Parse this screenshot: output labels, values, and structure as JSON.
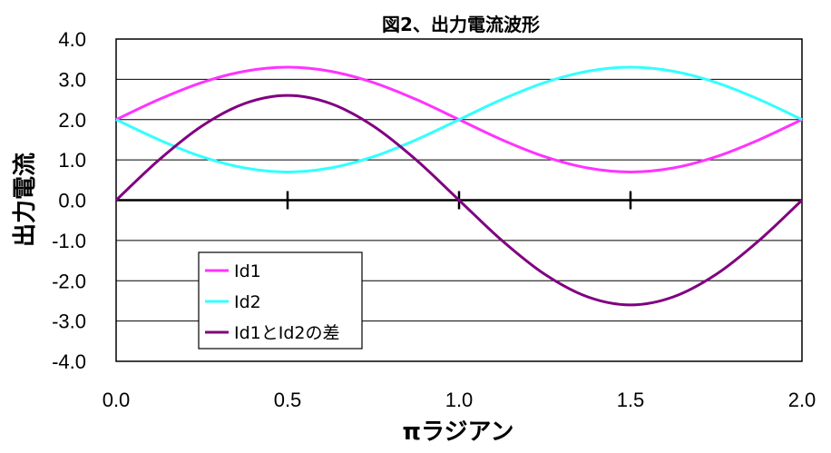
{
  "chart_data": {
    "type": "line",
    "title": "図2、出力電流波形",
    "xlabel": "πラジアン",
    "ylabel": "出力電流",
    "xlim": [
      0,
      2
    ],
    "ylim": [
      -4,
      4
    ],
    "x_ticks": [
      "0.0",
      "0.5",
      "1.0",
      "1.5",
      "2.0"
    ],
    "y_ticks": [
      "4.0",
      "3.0",
      "2.0",
      "1.0",
      "0.0",
      "-1.0",
      "-2.0",
      "-3.0",
      "-4.0"
    ],
    "grid": "horizontal",
    "legend_position": "bottom-left",
    "x": [
      0,
      0.125,
      0.25,
      0.375,
      0.5,
      0.625,
      0.75,
      0.875,
      1.0,
      1.125,
      1.25,
      1.375,
      1.5,
      1.625,
      1.75,
      1.875,
      2.0
    ],
    "series": [
      {
        "name": "Id1",
        "color": "#ff33ff",
        "values": [
          2.0,
          2.5,
          2.92,
          3.2,
          3.3,
          3.2,
          2.92,
          2.5,
          2.0,
          1.5,
          1.08,
          0.8,
          0.7,
          0.8,
          1.08,
          1.5,
          2.0
        ]
      },
      {
        "name": "Id2",
        "color": "#33ffff",
        "values": [
          2.0,
          1.5,
          1.08,
          0.8,
          0.7,
          0.8,
          1.08,
          1.5,
          2.0,
          2.5,
          2.92,
          3.2,
          3.3,
          3.2,
          2.92,
          2.5,
          2.0
        ]
      },
      {
        "name": "Id1とId2の差",
        "color": "#800080",
        "values": [
          0.0,
          1.0,
          1.84,
          2.4,
          2.6,
          2.4,
          1.84,
          1.0,
          0.0,
          -1.0,
          -1.84,
          -2.4,
          -2.6,
          -2.4,
          -1.84,
          -1.0,
          0.0
        ]
      }
    ]
  }
}
